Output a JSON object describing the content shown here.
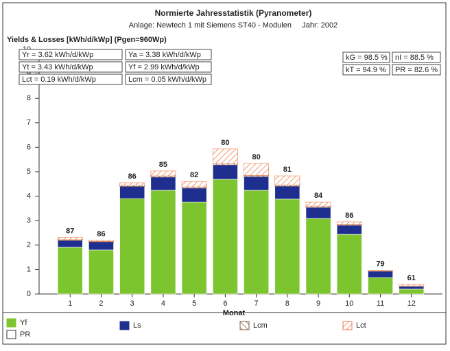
{
  "chart_data": {
    "type": "stacked_bar",
    "title": "Normierte Jahresstatistik (Pyranometer)",
    "subtitle": "Anlage: Newtech 1 mit Siemens ST40 - Modulen     Jahr: 2002",
    "y_label": "Yields & Losses [kWh/d/kWp] (Pgen=960Wp)",
    "x_label": "Monat",
    "categories": [
      "1",
      "2",
      "3",
      "4",
      "5",
      "6",
      "7",
      "8",
      "9",
      "10",
      "11",
      "12"
    ],
    "series": [
      {
        "name": "Yf",
        "color": "#7dc52e",
        "pattern": "solid",
        "values": [
          1.91,
          1.8,
          3.9,
          4.24,
          3.76,
          4.69,
          4.24,
          3.88,
          3.09,
          2.44,
          0.67,
          0.2
        ]
      },
      {
        "name": "Ls",
        "color": "#1f2f8f",
        "pattern": "solid",
        "values": [
          0.28,
          0.33,
          0.5,
          0.54,
          0.57,
          0.59,
          0.56,
          0.53,
          0.45,
          0.37,
          0.26,
          0.11
        ]
      },
      {
        "name": "Lcm",
        "color": "#8a5a40",
        "pattern": "hatch-back",
        "values": [
          0.03,
          0.02,
          0.05,
          0.05,
          0.05,
          0.05,
          0.05,
          0.05,
          0.05,
          0.04,
          0.01,
          0.01
        ]
      },
      {
        "name": "Lct",
        "color": "#f07848",
        "pattern": "hatch-fwd",
        "values": [
          0.1,
          0.04,
          0.1,
          0.2,
          0.22,
          0.6,
          0.49,
          0.37,
          0.17,
          0.1,
          0.02,
          0.07
        ]
      }
    ],
    "pr": {
      "name": "PR",
      "values": [
        87,
        86,
        86,
        85,
        82,
        80,
        80,
        81,
        84,
        86,
        79,
        61
      ]
    },
    "ylim": [
      0,
      10
    ],
    "yticks": [
      0,
      1,
      2,
      3,
      4,
      5,
      6,
      7,
      8,
      9,
      10
    ],
    "grid": false,
    "info_left": [
      [
        "Yr = 3.62 kWh/d/kWp",
        "Ya = 3.38 kWh/d/kWp"
      ],
      [
        "Yt = 3.43 kWh/d/kWp",
        "Yf = 2.99 kWh/d/kWp"
      ],
      [
        "Lct = 0.19 kWh/d/kWp",
        "Lcm = 0.05 kWh/d/kWp"
      ]
    ],
    "info_right": [
      [
        "kG = 98.5 %",
        "nI = 88.5 %"
      ],
      [
        "kT = 94.9 %",
        "PR = 82.6 %"
      ]
    ]
  }
}
